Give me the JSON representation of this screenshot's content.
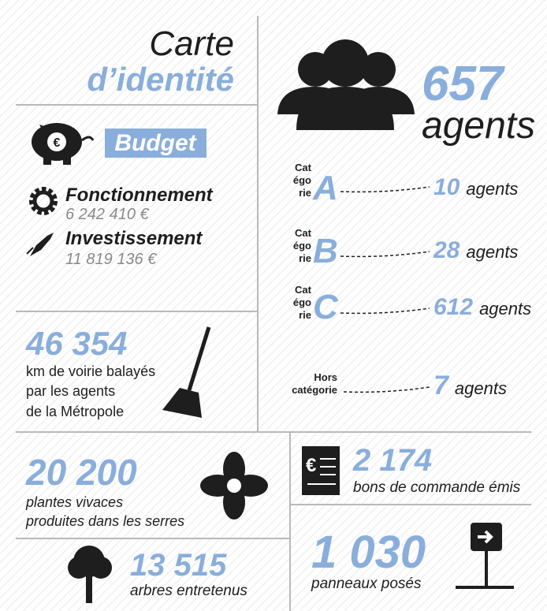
{
  "title": {
    "line1": "Carte",
    "line2": "d’identité"
  },
  "agents": {
    "total": "657",
    "total_label": "agents",
    "categories": [
      {
        "label": [
          "Cat",
          "égo",
          "rie"
        ],
        "letter": "A",
        "value": "10",
        "unit": "agents"
      },
      {
        "label": [
          "Cat",
          "égo",
          "rie"
        ],
        "letter": "B",
        "value": "28",
        "unit": "agents"
      },
      {
        "label": [
          "Cat",
          "égo",
          "rie"
        ],
        "letter": "C",
        "value": "612",
        "unit": "agents"
      },
      {
        "label": [
          "Hors",
          "catégorie"
        ],
        "value": "7",
        "unit": "agents"
      }
    ]
  },
  "budget": {
    "title": "Budget",
    "items": [
      {
        "label": "Fonctionnement",
        "amount": "6 242 410 €"
      },
      {
        "label": "Investissement",
        "amount": "11 819 136 €"
      }
    ]
  },
  "voirie": {
    "value": "46 354",
    "lines": [
      "km de voirie balayés",
      "par les agents",
      "de la Métropole"
    ]
  },
  "plantes": {
    "value": "20 200",
    "lines": [
      "plantes vivaces",
      "produites dans les serres"
    ]
  },
  "arbres": {
    "value": "13 515",
    "label": "arbres entretenus"
  },
  "commandes": {
    "value": "2 174",
    "label": "bons de commande émis"
  },
  "panneaux": {
    "value": "1 030",
    "label": "panneaux posés"
  }
}
